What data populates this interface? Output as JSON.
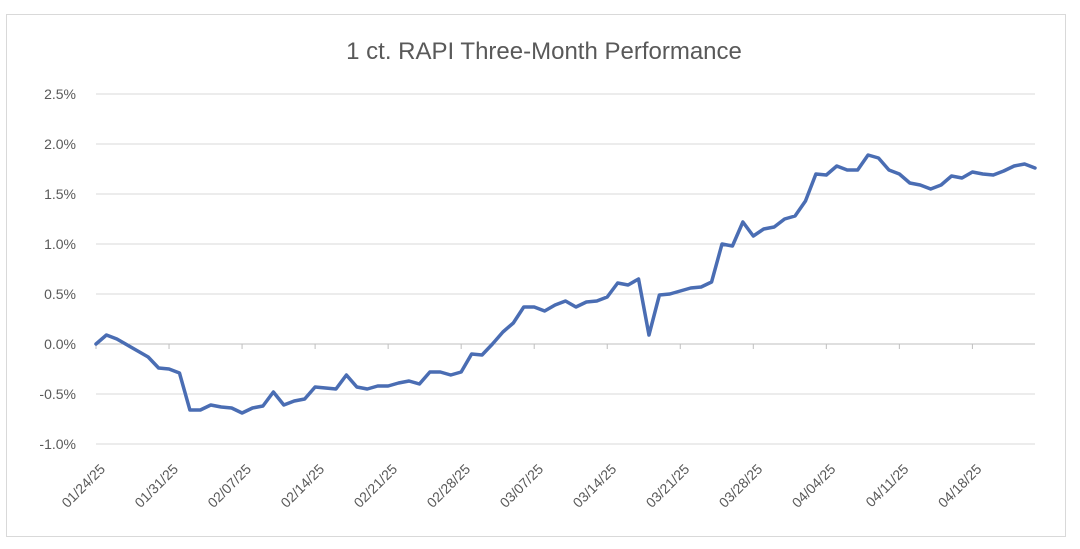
{
  "chart_data": {
    "type": "line",
    "title": "1 ct. RAPI Three-Month Performance",
    "xlabel": "",
    "ylabel": "",
    "y_ticks": [
      "2.5%",
      "2.0%",
      "1.5%",
      "1.0%",
      "0.5%",
      "0.0%",
      "-0.5%",
      "-1.0%"
    ],
    "y_tick_values": [
      2.5,
      2.0,
      1.5,
      1.0,
      0.5,
      0.0,
      -0.5,
      -1.0
    ],
    "ylim": [
      -1.0,
      2.5
    ],
    "x_ticks": [
      "01/24/25",
      "01/31/25",
      "02/07/25",
      "02/14/25",
      "02/21/25",
      "02/28/25",
      "03/07/25",
      "03/14/25",
      "03/21/25",
      "03/28/25",
      "04/04/25",
      "04/11/25",
      "04/18/25"
    ],
    "grid": true,
    "legend": "none",
    "series": [
      {
        "color": "#4a6db3",
        "values": [
          0.0,
          0.09,
          0.05,
          -0.01,
          -0.07,
          -0.13,
          -0.24,
          -0.25,
          -0.29,
          -0.66,
          -0.66,
          -0.61,
          -0.63,
          -0.64,
          -0.69,
          -0.64,
          -0.62,
          -0.48,
          -0.61,
          -0.57,
          -0.55,
          -0.43,
          -0.44,
          -0.45,
          -0.31,
          -0.43,
          -0.45,
          -0.42,
          -0.42,
          -0.39,
          -0.37,
          -0.4,
          -0.28,
          -0.28,
          -0.31,
          -0.28,
          -0.1,
          -0.11,
          0.0,
          0.12,
          0.21,
          0.37,
          0.37,
          0.33,
          0.39,
          0.43,
          0.37,
          0.42,
          0.43,
          0.47,
          0.61,
          0.59,
          0.65,
          0.09,
          0.49,
          0.5,
          0.53,
          0.56,
          0.57,
          0.62,
          1.0,
          0.98,
          1.22,
          1.08,
          1.15,
          1.17,
          1.25,
          1.28,
          1.43,
          1.7,
          1.69,
          1.78,
          1.74,
          1.74,
          1.89,
          1.86,
          1.74,
          1.7,
          1.61,
          1.59,
          1.55,
          1.59,
          1.68,
          1.66,
          1.72,
          1.7,
          1.69,
          1.73,
          1.78,
          1.8,
          1.76
        ]
      }
    ]
  }
}
